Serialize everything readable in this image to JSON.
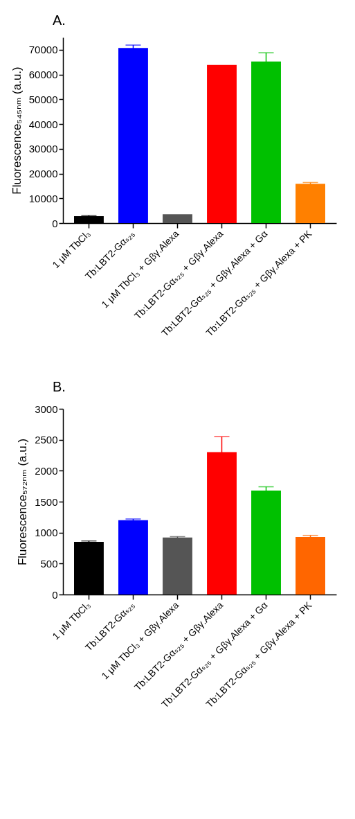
{
  "chart_data": [
    {
      "type": "bar",
      "title": "A.",
      "ylabel": "Fluorescence₅₄₅ₙₘ (a.u.)",
      "categories": [
        "1 μM TbCl₃",
        "Tb:LBT2-Gαₛ₂₅",
        "1 μM TbCl₃ + Gβγ.Alexa",
        "Tb:LBT2-Gαₛ₂₅ + Gβγ.Alexa",
        "Tb:LBT2-Gαₛ₂₅ + Gβγ.Alexa + Gα",
        "Tb:LBT2-Gαₛ₂₅ + Gβγ.Alexa + PK"
      ],
      "values": [
        2800,
        70700,
        3600,
        63900,
        65300,
        15900
      ],
      "errors": [
        300,
        1200,
        null,
        null,
        3500,
        500
      ],
      "colors": [
        "#000000",
        "#0000ff",
        "#555555",
        "#ff0000",
        "#00c000",
        "#ff8000"
      ],
      "ylim": [
        0,
        75000
      ],
      "yticks": [
        0,
        10000,
        20000,
        30000,
        40000,
        50000,
        60000,
        70000
      ],
      "grid": false,
      "legend": false
    },
    {
      "type": "bar",
      "title": "B.",
      "ylabel": "Fluorescence₅₇₂ₙₘ (a.u.)",
      "categories": [
        "1 μM TbCl₃",
        "Tb:LBT2-Gαₛ₂₅",
        "1 μM TbCl₃ + Gβγ.Alexa",
        "Tb:LBT2-Gαₛ₂₅ + Gβγ.Alexa",
        "Tb:LBT2-Gαₛ₂₅ + Gβγ.Alexa + Gα",
        "Tb:LBT2-Gαₛ₂₅ + Gβγ.Alexa + PK"
      ],
      "values": [
        850,
        1200,
        920,
        2300,
        1680,
        930
      ],
      "errors": [
        15,
        20,
        15,
        250,
        60,
        25
      ],
      "colors": [
        "#000000",
        "#0000ff",
        "#555555",
        "#ff0000",
        "#00c000",
        "#ff6600"
      ],
      "ylim": [
        0,
        3000
      ],
      "yticks": [
        0,
        500,
        1000,
        1500,
        2000,
        2500,
        3000
      ],
      "grid": false,
      "legend": false
    }
  ]
}
